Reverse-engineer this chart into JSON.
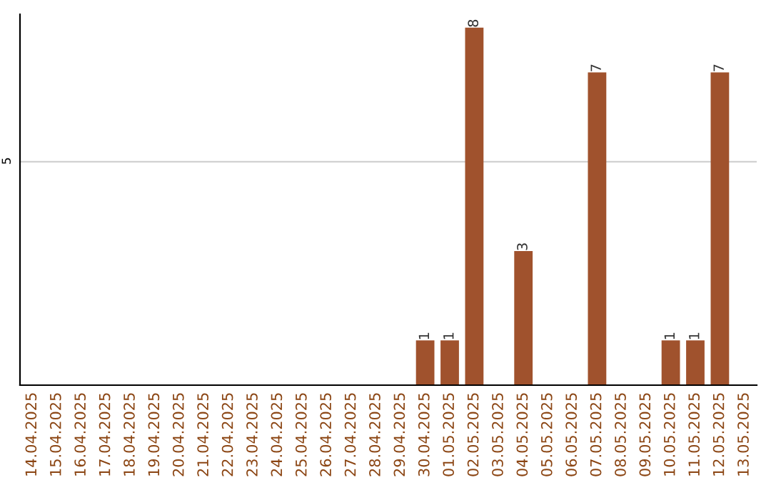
{
  "chart_data": {
    "type": "bar",
    "categories": [
      "14.04.2025",
      "15.04.2025",
      "16.04.2025",
      "17.04.2025",
      "18.04.2025",
      "19.04.2025",
      "20.04.2025",
      "21.04.2025",
      "22.04.2025",
      "23.04.2025",
      "24.04.2025",
      "25.04.2025",
      "26.04.2025",
      "27.04.2025",
      "28.04.2025",
      "29.04.2025",
      "30.04.2025",
      "01.05.2025",
      "02.05.2025",
      "03.05.2025",
      "04.05.2025",
      "05.05.2025",
      "06.05.2025",
      "07.05.2025",
      "08.05.2025",
      "09.05.2025",
      "10.05.2025",
      "11.05.2025",
      "12.05.2025",
      "13.05.2025"
    ],
    "values": [
      null,
      null,
      null,
      null,
      null,
      null,
      null,
      null,
      null,
      null,
      null,
      null,
      null,
      null,
      null,
      null,
      1,
      1,
      8,
      null,
      3,
      null,
      null,
      7,
      null,
      null,
      1,
      1,
      7,
      null
    ],
    "value_labels": [
      null,
      null,
      null,
      null,
      null,
      null,
      null,
      null,
      null,
      null,
      null,
      null,
      null,
      null,
      null,
      null,
      "1",
      "1",
      "8",
      null,
      "3",
      null,
      null,
      "7",
      null,
      null,
      "1",
      "1",
      "7",
      null
    ],
    "color": "#a0522d",
    "ylim": [
      0,
      8.3
    ],
    "yticks": [
      5
    ],
    "grid": "y"
  }
}
